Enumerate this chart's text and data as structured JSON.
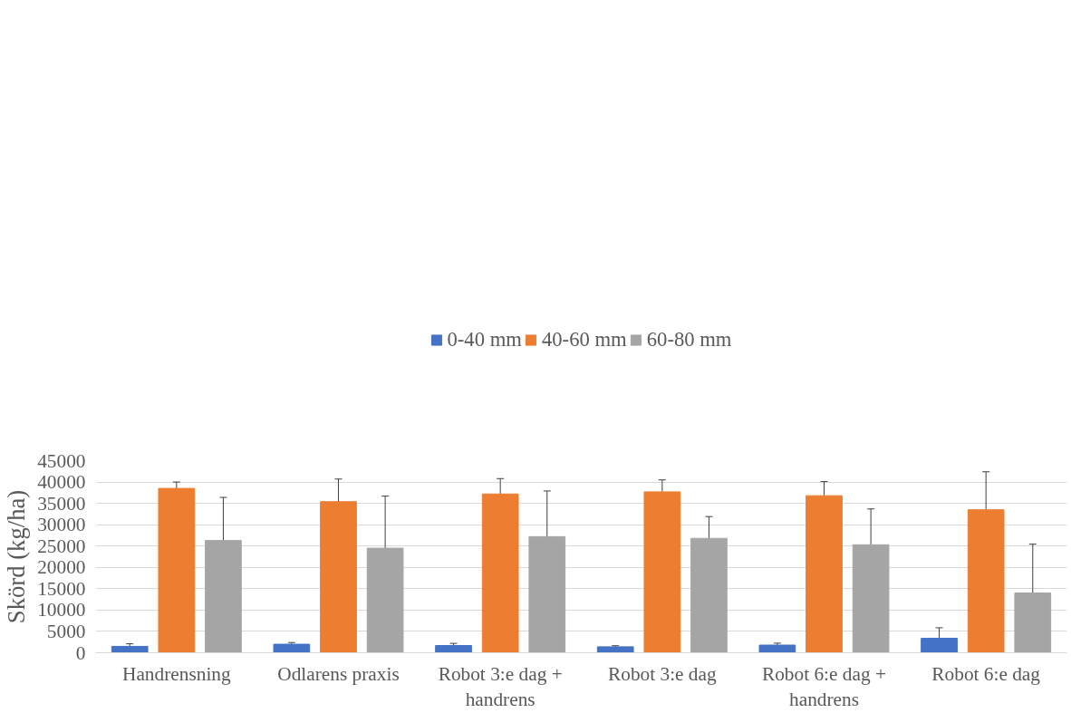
{
  "chart_data": {
    "type": "bar",
    "ylabel": "Skörd (kg/ha)",
    "categories": [
      "Handrensning",
      "Odlarens praxis",
      "Robot 3:e dag + handrens",
      "Robot 3:e dag",
      "Robot 6:e dag + handrens",
      "Robot 6:e dag"
    ],
    "series": [
      {
        "name": "0-40 mm",
        "color": "#4472c4",
        "values": [
          1500,
          2000,
          1700,
          1400,
          1800,
          3400
        ],
        "errors": [
          600,
          400,
          500,
          250,
          450,
          2450
        ]
      },
      {
        "name": "40-60 mm",
        "color": "#ed7d31",
        "values": [
          38500,
          35400,
          37200,
          37700,
          36800,
          33500
        ],
        "errors": [
          1500,
          5300,
          3600,
          2800,
          3300,
          8900
        ]
      },
      {
        "name": "60-80 mm",
        "color": "#a5a5a5",
        "values": [
          26300,
          24500,
          27200,
          26800,
          25300,
          14000
        ],
        "errors": [
          10100,
          12200,
          10700,
          5100,
          8400,
          11450
        ]
      }
    ],
    "ylim": [
      0,
      45000
    ],
    "yticks": [
      0,
      5000,
      10000,
      15000,
      20000,
      25000,
      30000,
      35000,
      40000,
      45000
    ],
    "grid": "y",
    "legend": "top"
  }
}
